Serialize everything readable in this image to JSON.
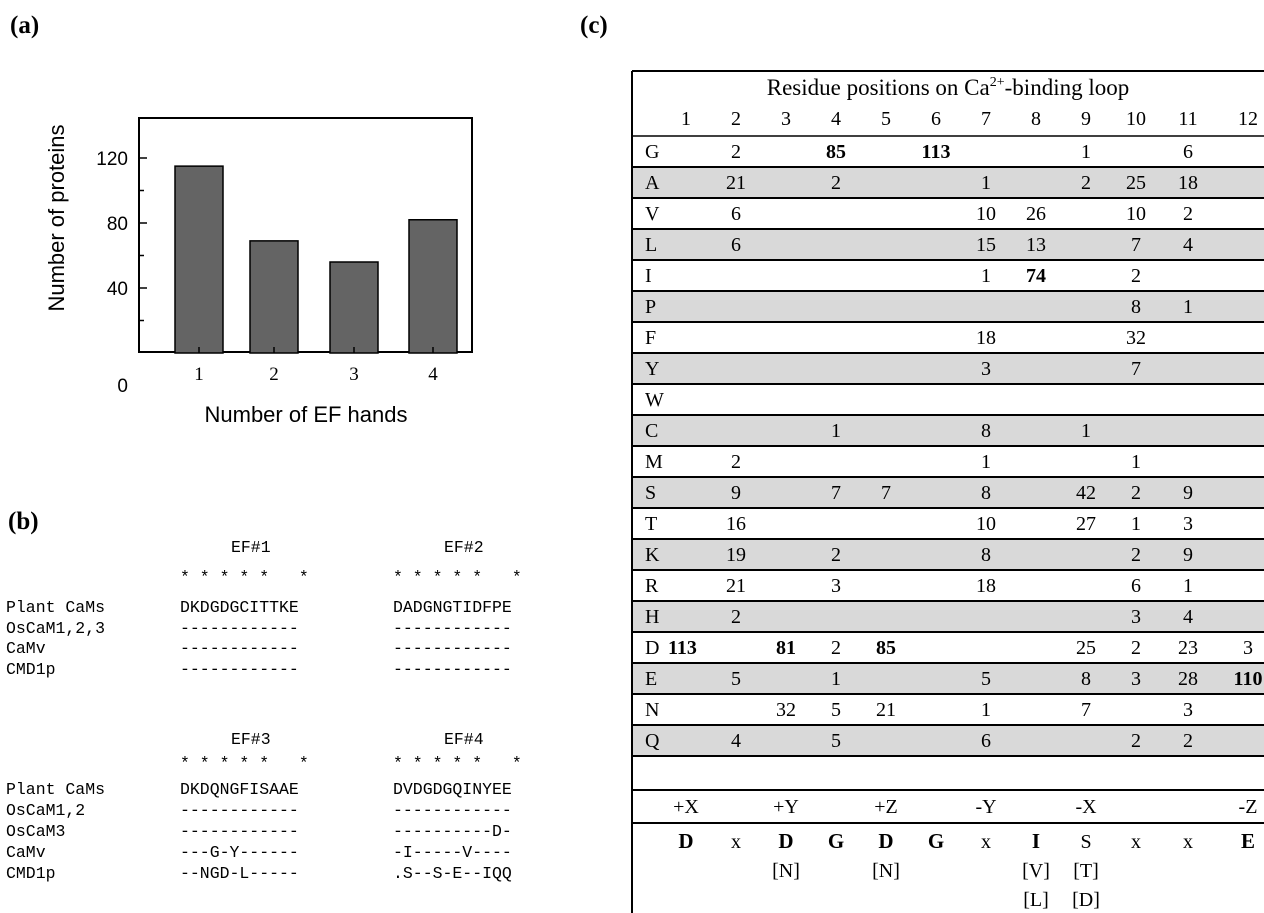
{
  "panels": {
    "a": "(a)",
    "b": "(b)",
    "c": "(c)"
  },
  "chart_data": {
    "type": "bar",
    "categories": [
      "1",
      "2",
      "3",
      "4"
    ],
    "values": [
      115,
      69,
      56,
      82
    ],
    "xlabel": "Number of EF hands",
    "ylabel": "Number of proteins",
    "ylim": [
      0,
      140
    ],
    "yticks": [
      "0",
      "40",
      "80",
      "120"
    ],
    "bar_color": "#646464",
    "grid": false
  },
  "alignment": {
    "block1": {
      "headers": [
        "EF#1",
        "EF#2"
      ],
      "stars": [
        "* * * * *   *",
        "* * * * *   *"
      ],
      "rows": [
        {
          "name": "Plant CaMs",
          "ef_a": "DKDGDGCITTKE",
          "ef_b": "DADGNGTIDFPE"
        },
        {
          "name": "OsCaM1,2,3",
          "ef_a": "------------",
          "ef_b": "------------"
        },
        {
          "name": "CaMv",
          "ef_a": "------------",
          "ef_b": "------------"
        },
        {
          "name": "CMD1p",
          "ef_a": "------------",
          "ef_b": "------------"
        }
      ]
    },
    "block2": {
      "headers": [
        "EF#3",
        "EF#4"
      ],
      "stars": [
        "* * * * *   *",
        "* * * * *   *"
      ],
      "rows": [
        {
          "name": "Plant CaMs",
          "ef_a": "DKDQNGFISAAE",
          "ef_b": "DVDGDGQINYEE"
        },
        {
          "name": "OsCaM1,2",
          "ef_a": "------------",
          "ef_b": "------------"
        },
        {
          "name": "OsCaM3",
          "ef_a": "------------",
          "ef_b": "----------D-"
        },
        {
          "name": "CaMv",
          "ef_a": "---G-Y------",
          "ef_b": "-I-----V----"
        },
        {
          "name": "CMD1p",
          "ef_a": "--NGD-L-----",
          "ef_b": ".S--S-E--IQQ"
        }
      ]
    }
  },
  "table": {
    "title_main": "Residue positions on Ca",
    "title_sup": "2+",
    "title_tail": "-binding loop",
    "positions": [
      "1",
      "2",
      "3",
      "4",
      "5",
      "6",
      "7",
      "8",
      "9",
      "10",
      "11",
      "12"
    ],
    "shade_color": "#d9d9d9",
    "rows": [
      {
        "aa": "G",
        "shaded": false,
        "cells": [
          "",
          "2",
          "",
          "85",
          "",
          "113",
          "",
          "",
          "1",
          "",
          "6",
          ""
        ],
        "bold": [
          3,
          5
        ]
      },
      {
        "aa": "A",
        "shaded": true,
        "cells": [
          "",
          "21",
          "",
          "2",
          "",
          "",
          "1",
          "",
          "2",
          "25",
          "18",
          ""
        ],
        "bold": []
      },
      {
        "aa": "V",
        "shaded": false,
        "cells": [
          "",
          "6",
          "",
          "",
          "",
          "",
          "10",
          "26",
          "",
          "10",
          "2",
          ""
        ],
        "bold": []
      },
      {
        "aa": "L",
        "shaded": true,
        "cells": [
          "",
          "6",
          "",
          "",
          "",
          "",
          "15",
          "13",
          "",
          "7",
          "4",
          ""
        ],
        "bold": []
      },
      {
        "aa": "I",
        "shaded": false,
        "cells": [
          "",
          "",
          "",
          "",
          "",
          "",
          "1",
          "74",
          "",
          "2",
          "",
          ""
        ],
        "bold": [
          7
        ]
      },
      {
        "aa": "P",
        "shaded": true,
        "cells": [
          "",
          "",
          "",
          "",
          "",
          "",
          "",
          "",
          "",
          "8",
          "1",
          ""
        ],
        "bold": []
      },
      {
        "aa": "F",
        "shaded": false,
        "cells": [
          "",
          "",
          "",
          "",
          "",
          "",
          "18",
          "",
          "",
          "32",
          "",
          ""
        ],
        "bold": []
      },
      {
        "aa": "Y",
        "shaded": true,
        "cells": [
          "",
          "",
          "",
          "",
          "",
          "",
          "3",
          "",
          "",
          "7",
          "",
          ""
        ],
        "bold": []
      },
      {
        "aa": "W",
        "shaded": false,
        "cells": [
          "",
          "",
          "",
          "",
          "",
          "",
          "",
          "",
          "",
          "",
          "",
          ""
        ],
        "bold": []
      },
      {
        "aa": "C",
        "shaded": true,
        "cells": [
          "",
          "",
          "",
          "1",
          "",
          "",
          "8",
          "",
          "1",
          "",
          "",
          ""
        ],
        "bold": []
      },
      {
        "aa": "M",
        "shaded": false,
        "cells": [
          "",
          "2",
          "",
          "",
          "",
          "",
          "1",
          "",
          "",
          "1",
          "",
          ""
        ],
        "bold": []
      },
      {
        "aa": "S",
        "shaded": true,
        "cells": [
          "",
          "9",
          "",
          "7",
          "7",
          "",
          "8",
          "",
          "42",
          "2",
          "9",
          ""
        ],
        "bold": []
      },
      {
        "aa": "T",
        "shaded": false,
        "cells": [
          "",
          "16",
          "",
          "",
          "",
          "",
          "10",
          "",
          "27",
          "1",
          "3",
          ""
        ],
        "bold": []
      },
      {
        "aa": "K",
        "shaded": true,
        "cells": [
          "",
          "19",
          "",
          "2",
          "",
          "",
          "8",
          "",
          "",
          "2",
          "9",
          ""
        ],
        "bold": []
      },
      {
        "aa": "R",
        "shaded": false,
        "cells": [
          "",
          "21",
          "",
          "3",
          "",
          "",
          "18",
          "",
          "",
          "6",
          "1",
          ""
        ],
        "bold": []
      },
      {
        "aa": "H",
        "shaded": true,
        "cells": [
          "",
          "2",
          "",
          "",
          "",
          "",
          "",
          "",
          "",
          "3",
          "4",
          ""
        ],
        "bold": []
      },
      {
        "aa": "D",
        "shaded": false,
        "cells": [
          "113",
          "",
          "81",
          "2",
          "85",
          "",
          "",
          "",
          "25",
          "2",
          "23",
          "3"
        ],
        "bold": [
          0,
          2,
          4
        ]
      },
      {
        "aa": "E",
        "shaded": true,
        "cells": [
          "",
          "5",
          "",
          "1",
          "",
          "",
          "5",
          "",
          "8",
          "3",
          "28",
          "110"
        ],
        "bold": [
          11
        ]
      },
      {
        "aa": "N",
        "shaded": false,
        "cells": [
          "",
          "",
          "32",
          "5",
          "21",
          "",
          "1",
          "",
          "7",
          "",
          "3",
          ""
        ],
        "bold": []
      },
      {
        "aa": "Q",
        "shaded": true,
        "cells": [
          "",
          "4",
          "",
          "5",
          "",
          "",
          "6",
          "",
          "",
          "2",
          "2",
          ""
        ],
        "bold": []
      }
    ],
    "coord_row": [
      "+X",
      "",
      "+Y",
      "",
      "+Z",
      "",
      "-Y",
      "",
      "-X",
      "",
      "",
      "-Z"
    ],
    "consensus": [
      {
        "text": "D",
        "bold": true
      },
      {
        "text": "x",
        "bold": false
      },
      {
        "text": "D",
        "bold": true
      },
      {
        "text": "G",
        "bold": true
      },
      {
        "text": "D",
        "bold": true
      },
      {
        "text": "G",
        "bold": true
      },
      {
        "text": "x",
        "bold": false
      },
      {
        "text": "I",
        "bold": true
      },
      {
        "text": "S",
        "bold": false
      },
      {
        "text": "x",
        "bold": false
      },
      {
        "text": "x",
        "bold": false
      },
      {
        "text": "E",
        "bold": true
      }
    ],
    "alt1": [
      "",
      "",
      "[N]",
      "",
      "[N]",
      "",
      "",
      "[V]",
      "[T]",
      "",
      "",
      ""
    ],
    "alt2": [
      "",
      "",
      "",
      "",
      "",
      "",
      "",
      "[L]",
      "[D]",
      "",
      "",
      ""
    ]
  }
}
